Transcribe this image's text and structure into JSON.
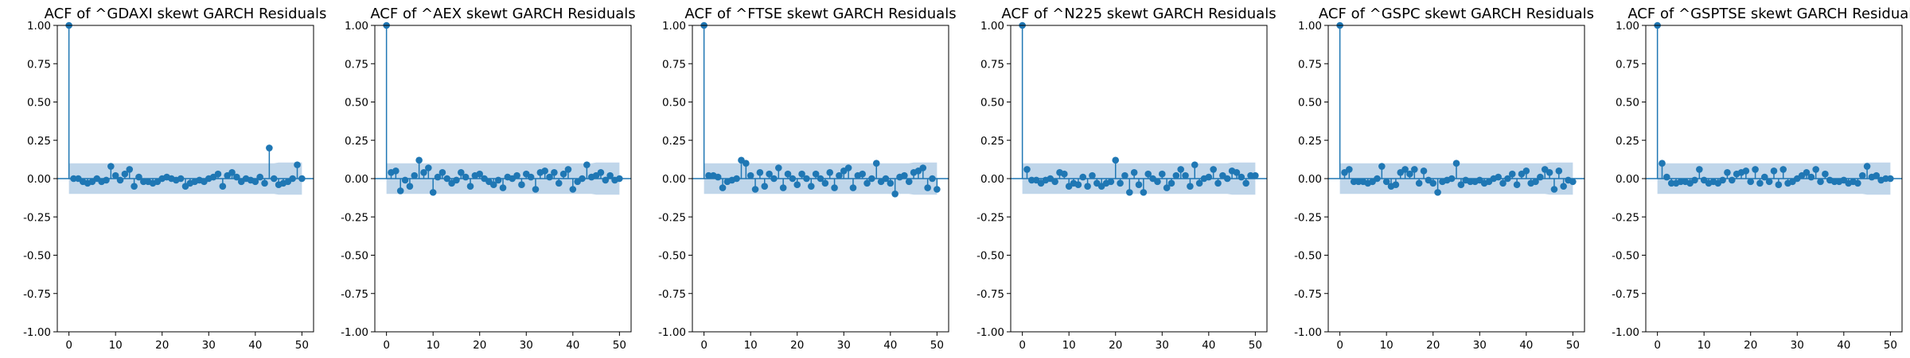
{
  "chart_data": [
    {
      "type": "stem",
      "title": "ACF of ^GDAXI skewt GARCH Residuals",
      "x": [
        0,
        1,
        2,
        3,
        4,
        5,
        6,
        7,
        8,
        9,
        10,
        11,
        12,
        13,
        14,
        15,
        16,
        17,
        18,
        19,
        20,
        21,
        22,
        23,
        24,
        25,
        26,
        27,
        28,
        29,
        30,
        31,
        32,
        33,
        34,
        35,
        36,
        37,
        38,
        39,
        40,
        41,
        42,
        43,
        44,
        45,
        46,
        47,
        48,
        49,
        50
      ],
      "values": [
        1.0,
        0.0,
        0.0,
        -0.02,
        -0.03,
        -0.02,
        0.0,
        -0.02,
        -0.01,
        0.08,
        0.02,
        -0.01,
        0.03,
        0.06,
        -0.05,
        0.01,
        -0.02,
        -0.02,
        -0.03,
        -0.02,
        0.0,
        0.01,
        0.0,
        -0.01,
        0.0,
        -0.05,
        -0.03,
        -0.02,
        -0.01,
        -0.02,
        0.0,
        0.01,
        0.03,
        -0.05,
        0.02,
        0.04,
        0.01,
        -0.02,
        0.0,
        -0.01,
        -0.02,
        0.01,
        -0.03,
        0.2,
        0.0,
        -0.04,
        -0.03,
        -0.02,
        0.0,
        0.09,
        0.0
      ],
      "conf_band": [
        0.1,
        0.1,
        0.1,
        0.1,
        0.1,
        0.1,
        0.1,
        0.1,
        0.1,
        0.1,
        0.1,
        0.1,
        0.1,
        0.1,
        0.1,
        0.1,
        0.1,
        0.1,
        0.1,
        0.1,
        0.1,
        0.1,
        0.1,
        0.1,
        0.1,
        0.1,
        0.1,
        0.1,
        0.1,
        0.1,
        0.1,
        0.1,
        0.1,
        0.1,
        0.1,
        0.1,
        0.1,
        0.1,
        0.1,
        0.1,
        0.1,
        0.1,
        0.1,
        0.1,
        0.1,
        0.105,
        0.105,
        0.105,
        0.105,
        0.105,
        0.105
      ],
      "ylim": [
        -1.0,
        1.0
      ],
      "xlim": [
        -2.5,
        52.5
      ],
      "yticks": [
        "1.00",
        "0.75",
        "0.50",
        "0.25",
        "0.00",
        "-0.25",
        "-0.50",
        "-0.75",
        "-1.00"
      ],
      "xticks": [
        "0",
        "10",
        "20",
        "30",
        "40",
        "50"
      ],
      "grid": false,
      "color": "#1f77b4",
      "band_color": "#c0d6ea"
    },
    {
      "type": "stem",
      "title": "ACF of ^AEX skewt GARCH Residuals",
      "x": [
        0,
        1,
        2,
        3,
        4,
        5,
        6,
        7,
        8,
        9,
        10,
        11,
        12,
        13,
        14,
        15,
        16,
        17,
        18,
        19,
        20,
        21,
        22,
        23,
        24,
        25,
        26,
        27,
        28,
        29,
        30,
        31,
        32,
        33,
        34,
        35,
        36,
        37,
        38,
        39,
        40,
        41,
        42,
        43,
        44,
        45,
        46,
        47,
        48,
        49,
        50
      ],
      "values": [
        1.0,
        0.04,
        0.05,
        -0.08,
        -0.01,
        -0.05,
        0.02,
        0.12,
        0.04,
        0.07,
        -0.09,
        0.01,
        0.04,
        0.0,
        -0.03,
        -0.01,
        0.04,
        0.01,
        -0.05,
        0.02,
        0.03,
        0.0,
        -0.02,
        -0.04,
        -0.01,
        -0.06,
        0.01,
        0.0,
        0.02,
        -0.04,
        0.03,
        0.01,
        -0.07,
        0.04,
        0.05,
        0.01,
        0.04,
        -0.03,
        0.03,
        0.06,
        -0.07,
        -0.02,
        0.0,
        0.09,
        0.01,
        0.02,
        0.04,
        -0.01,
        0.02,
        -0.01,
        0.0
      ],
      "conf_band": [
        0.1,
        0.1,
        0.1,
        0.1,
        0.1,
        0.1,
        0.1,
        0.1,
        0.1,
        0.1,
        0.1,
        0.1,
        0.1,
        0.1,
        0.1,
        0.1,
        0.1,
        0.1,
        0.1,
        0.1,
        0.1,
        0.1,
        0.1,
        0.1,
        0.1,
        0.1,
        0.1,
        0.1,
        0.1,
        0.1,
        0.1,
        0.1,
        0.1,
        0.1,
        0.1,
        0.1,
        0.1,
        0.1,
        0.1,
        0.1,
        0.1,
        0.1,
        0.1,
        0.1,
        0.1,
        0.105,
        0.105,
        0.105,
        0.105,
        0.105,
        0.105
      ],
      "ylim": [
        -1.0,
        1.0
      ],
      "xlim": [
        -2.5,
        52.5
      ],
      "yticks": [
        "1.00",
        "0.75",
        "0.50",
        "0.25",
        "0.00",
        "-0.25",
        "-0.50",
        "-0.75",
        "-1.00"
      ],
      "xticks": [
        "0",
        "10",
        "20",
        "30",
        "40",
        "50"
      ],
      "grid": false,
      "color": "#1f77b4",
      "band_color": "#c0d6ea"
    },
    {
      "type": "stem",
      "title": "ACF of ^FTSE skewt GARCH Residuals",
      "x": [
        0,
        1,
        2,
        3,
        4,
        5,
        6,
        7,
        8,
        9,
        10,
        11,
        12,
        13,
        14,
        15,
        16,
        17,
        18,
        19,
        20,
        21,
        22,
        23,
        24,
        25,
        26,
        27,
        28,
        29,
        30,
        31,
        32,
        33,
        34,
        35,
        36,
        37,
        38,
        39,
        40,
        41,
        42,
        43,
        44,
        45,
        46,
        47,
        48,
        49,
        50
      ],
      "values": [
        1.0,
        0.02,
        0.02,
        0.01,
        -0.06,
        -0.02,
        -0.01,
        0.0,
        0.12,
        0.1,
        0.02,
        -0.07,
        0.04,
        -0.05,
        0.03,
        0.0,
        0.07,
        -0.06,
        0.03,
        0.0,
        -0.04,
        0.03,
        0.0,
        -0.05,
        0.03,
        0.0,
        -0.03,
        0.04,
        -0.06,
        0.02,
        0.05,
        0.07,
        -0.06,
        0.02,
        0.03,
        -0.03,
        0.0,
        0.1,
        -0.02,
        0.0,
        -0.03,
        -0.1,
        0.01,
        0.02,
        -0.02,
        0.04,
        0.05,
        0.07,
        -0.06,
        0.0,
        -0.07
      ],
      "conf_band": [
        0.1,
        0.1,
        0.1,
        0.1,
        0.1,
        0.1,
        0.1,
        0.1,
        0.1,
        0.1,
        0.1,
        0.1,
        0.1,
        0.1,
        0.1,
        0.1,
        0.1,
        0.1,
        0.1,
        0.1,
        0.1,
        0.1,
        0.1,
        0.1,
        0.1,
        0.1,
        0.1,
        0.1,
        0.1,
        0.1,
        0.1,
        0.1,
        0.1,
        0.1,
        0.1,
        0.1,
        0.1,
        0.1,
        0.1,
        0.1,
        0.1,
        0.1,
        0.1,
        0.1,
        0.1,
        0.105,
        0.105,
        0.105,
        0.105,
        0.105,
        0.105
      ],
      "ylim": [
        -1.0,
        1.0
      ],
      "xlim": [
        -2.5,
        52.5
      ],
      "yticks": [
        "1.00",
        "0.75",
        "0.50",
        "0.25",
        "0.00",
        "-0.25",
        "-0.50",
        "-0.75",
        "-1.00"
      ],
      "xticks": [
        "0",
        "10",
        "20",
        "30",
        "40",
        "50"
      ],
      "grid": false,
      "color": "#1f77b4",
      "band_color": "#c0d6ea"
    },
    {
      "type": "stem",
      "title": "ACF of ^N225 skewt GARCH Residuals",
      "x": [
        0,
        1,
        2,
        3,
        4,
        5,
        6,
        7,
        8,
        9,
        10,
        11,
        12,
        13,
        14,
        15,
        16,
        17,
        18,
        19,
        20,
        21,
        22,
        23,
        24,
        25,
        26,
        27,
        28,
        29,
        30,
        31,
        32,
        33,
        34,
        35,
        36,
        37,
        38,
        39,
        40,
        41,
        42,
        43,
        44,
        45,
        46,
        47,
        48,
        49,
        50
      ],
      "values": [
        1.0,
        0.06,
        -0.01,
        -0.01,
        -0.03,
        -0.01,
        0.0,
        -0.02,
        0.04,
        0.03,
        -0.05,
        -0.03,
        -0.04,
        0.01,
        -0.05,
        0.02,
        -0.03,
        -0.05,
        -0.03,
        -0.02,
        0.12,
        -0.03,
        0.02,
        -0.09,
        0.04,
        -0.04,
        -0.09,
        0.03,
        0.0,
        -0.02,
        0.03,
        -0.06,
        -0.03,
        0.02,
        0.06,
        0.02,
        -0.05,
        0.09,
        -0.03,
        0.0,
        0.01,
        0.06,
        -0.03,
        0.02,
        0.0,
        0.05,
        0.04,
        0.01,
        -0.03,
        0.02,
        0.02
      ],
      "conf_band": [
        0.1,
        0.1,
        0.1,
        0.1,
        0.1,
        0.1,
        0.1,
        0.1,
        0.1,
        0.1,
        0.1,
        0.1,
        0.1,
        0.1,
        0.1,
        0.1,
        0.1,
        0.1,
        0.1,
        0.1,
        0.1,
        0.1,
        0.1,
        0.1,
        0.1,
        0.1,
        0.1,
        0.1,
        0.1,
        0.1,
        0.1,
        0.1,
        0.1,
        0.1,
        0.1,
        0.1,
        0.1,
        0.1,
        0.1,
        0.1,
        0.1,
        0.1,
        0.1,
        0.1,
        0.1,
        0.105,
        0.105,
        0.105,
        0.105,
        0.105,
        0.105
      ],
      "ylim": [
        -1.0,
        1.0
      ],
      "xlim": [
        -2.5,
        52.5
      ],
      "yticks": [
        "1.00",
        "0.75",
        "0.50",
        "0.25",
        "0.00",
        "-0.25",
        "-0.50",
        "-0.75",
        "-1.00"
      ],
      "xticks": [
        "0",
        "10",
        "20",
        "30",
        "40",
        "50"
      ],
      "grid": false,
      "color": "#1f77b4",
      "band_color": "#c0d6ea"
    },
    {
      "type": "stem",
      "title": "ACF of ^GSPC skewt GARCH Residuals",
      "x": [
        0,
        1,
        2,
        3,
        4,
        5,
        6,
        7,
        8,
        9,
        10,
        11,
        12,
        13,
        14,
        15,
        16,
        17,
        18,
        19,
        20,
        21,
        22,
        23,
        24,
        25,
        26,
        27,
        28,
        29,
        30,
        31,
        32,
        33,
        34,
        35,
        36,
        37,
        38,
        39,
        40,
        41,
        42,
        43,
        44,
        45,
        46,
        47,
        48,
        49,
        50
      ],
      "values": [
        1.0,
        0.04,
        0.06,
        -0.02,
        -0.02,
        -0.02,
        -0.03,
        -0.02,
        0.0,
        0.08,
        -0.02,
        -0.05,
        -0.04,
        0.04,
        0.06,
        0.03,
        0.06,
        -0.03,
        0.05,
        -0.01,
        -0.03,
        -0.09,
        -0.02,
        -0.01,
        0.0,
        0.1,
        -0.04,
        -0.01,
        -0.02,
        -0.02,
        -0.01,
        -0.03,
        -0.02,
        0.0,
        0.01,
        -0.03,
        0.0,
        0.03,
        -0.04,
        0.03,
        0.05,
        -0.03,
        -0.02,
        0.01,
        0.06,
        0.04,
        -0.07,
        0.05,
        -0.05,
        -0.01,
        -0.02
      ],
      "conf_band": [
        0.1,
        0.1,
        0.1,
        0.1,
        0.1,
        0.1,
        0.1,
        0.1,
        0.1,
        0.1,
        0.1,
        0.1,
        0.1,
        0.1,
        0.1,
        0.1,
        0.1,
        0.1,
        0.1,
        0.1,
        0.1,
        0.1,
        0.1,
        0.1,
        0.1,
        0.1,
        0.1,
        0.1,
        0.1,
        0.1,
        0.1,
        0.1,
        0.1,
        0.1,
        0.1,
        0.1,
        0.1,
        0.1,
        0.1,
        0.1,
        0.1,
        0.1,
        0.1,
        0.1,
        0.1,
        0.105,
        0.105,
        0.105,
        0.105,
        0.105,
        0.105
      ],
      "ylim": [
        -1.0,
        1.0
      ],
      "xlim": [
        -2.5,
        52.5
      ],
      "yticks": [
        "1.00",
        "0.75",
        "0.50",
        "0.25",
        "0.00",
        "-0.25",
        "-0.50",
        "-0.75",
        "-1.00"
      ],
      "xticks": [
        "0",
        "10",
        "20",
        "30",
        "40",
        "50"
      ],
      "grid": false,
      "color": "#1f77b4",
      "band_color": "#c0d6ea"
    },
    {
      "type": "stem",
      "title": "ACF of ^GSPTSE skewt GARCH Residuals",
      "x": [
        0,
        1,
        2,
        3,
        4,
        5,
        6,
        7,
        8,
        9,
        10,
        11,
        12,
        13,
        14,
        15,
        16,
        17,
        18,
        19,
        20,
        21,
        22,
        23,
        24,
        25,
        26,
        27,
        28,
        29,
        30,
        31,
        32,
        33,
        34,
        35,
        36,
        37,
        38,
        39,
        40,
        41,
        42,
        43,
        44,
        45,
        46,
        47,
        48,
        49,
        50
      ],
      "values": [
        1.0,
        0.1,
        0.01,
        -0.03,
        -0.03,
        -0.02,
        -0.02,
        -0.03,
        -0.01,
        0.06,
        -0.01,
        -0.03,
        -0.02,
        -0.03,
        -0.01,
        0.04,
        -0.01,
        0.03,
        0.04,
        0.05,
        -0.02,
        0.06,
        -0.03,
        0.01,
        -0.02,
        0.05,
        -0.04,
        0.06,
        -0.03,
        -0.02,
        0.0,
        0.02,
        0.04,
        0.01,
        0.06,
        -0.02,
        0.03,
        -0.01,
        -0.02,
        -0.02,
        -0.01,
        -0.03,
        -0.02,
        -0.03,
        0.02,
        0.08,
        0.01,
        0.02,
        -0.01,
        0.0,
        0.0
      ],
      "conf_band": [
        0.1,
        0.1,
        0.1,
        0.1,
        0.1,
        0.1,
        0.1,
        0.1,
        0.1,
        0.1,
        0.1,
        0.1,
        0.1,
        0.1,
        0.1,
        0.1,
        0.1,
        0.1,
        0.1,
        0.1,
        0.1,
        0.1,
        0.1,
        0.1,
        0.1,
        0.1,
        0.1,
        0.1,
        0.1,
        0.1,
        0.1,
        0.1,
        0.1,
        0.1,
        0.1,
        0.1,
        0.1,
        0.1,
        0.1,
        0.1,
        0.1,
        0.1,
        0.1,
        0.1,
        0.1,
        0.105,
        0.105,
        0.105,
        0.105,
        0.105,
        0.105
      ],
      "ylim": [
        -1.0,
        1.0
      ],
      "xlim": [
        -2.5,
        52.5
      ],
      "yticks": [
        "1.00",
        "0.75",
        "0.50",
        "0.25",
        "0.00",
        "-0.25",
        "-0.50",
        "-0.75",
        "-1.00"
      ],
      "xticks": [
        "0",
        "10",
        "20",
        "30",
        "40",
        "50"
      ],
      "grid": false,
      "color": "#1f77b4",
      "band_color": "#c0d6ea"
    }
  ]
}
